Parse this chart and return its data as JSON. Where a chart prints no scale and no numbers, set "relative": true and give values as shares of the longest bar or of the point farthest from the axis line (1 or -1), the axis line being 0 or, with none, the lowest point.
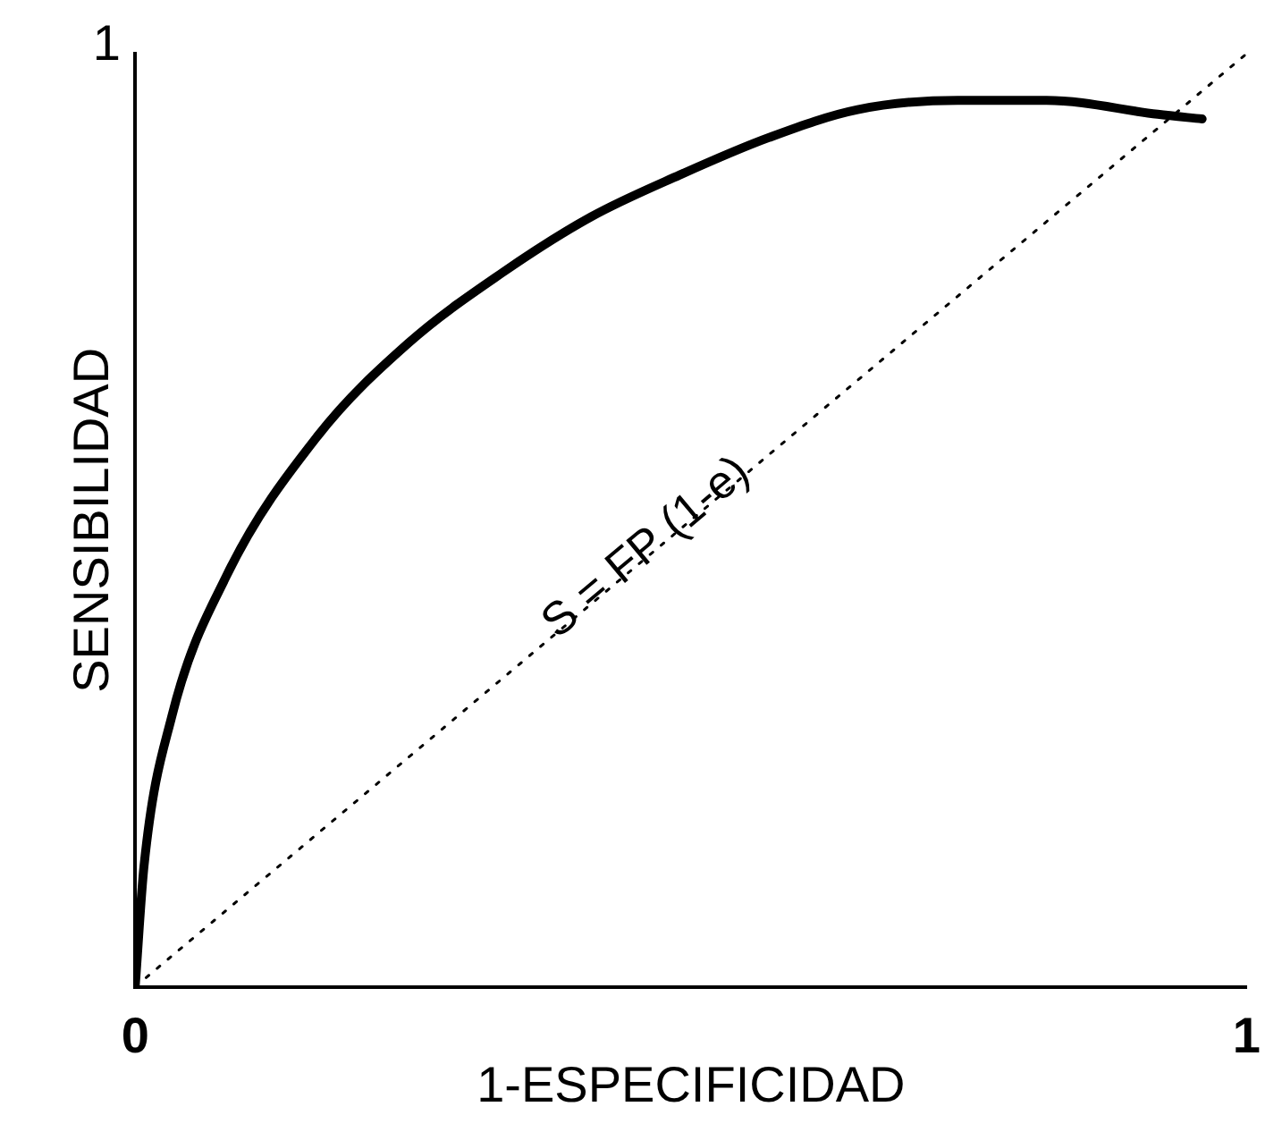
{
  "chart_data": {
    "type": "line",
    "xlabel": "1-ESPECIFICIDAD",
    "ylabel": "SENSIBILIDAD",
    "xlim": [
      0,
      1
    ],
    "xticks": [
      0,
      1
    ],
    "relative": true,
    "grid": false,
    "legend": false,
    "marker": "none",
    "series": [
      {
        "color": "#000000",
        "line_style": "solid",
        "x": [
          0,
          0.008,
          0.033,
          0.082,
          0.164,
          0.246,
          0.33,
          0.41,
          0.49,
          0.57,
          0.65,
          0.74,
          0.82,
          0.92,
          0.96
        ],
        "values": [
          0,
          0.13,
          0.29,
          0.44,
          0.59,
          0.69,
          0.765,
          0.825,
          0.87,
          0.91,
          0.94,
          0.95,
          0.95,
          0.935,
          0.93
        ]
      },
      {
        "color": "#000000",
        "line_style": "dotted",
        "x": [
          0,
          1
        ],
        "values": [
          0,
          1
        ]
      }
    ],
    "annotations": [
      "1",
      "S = FP (1-e)"
    ]
  }
}
